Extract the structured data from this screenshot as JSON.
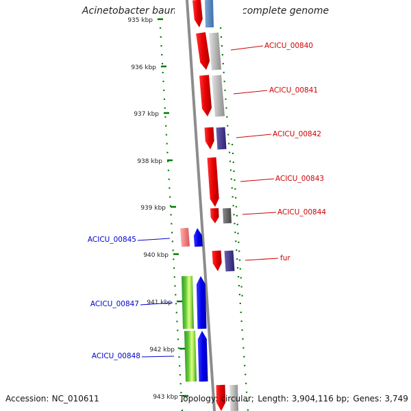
{
  "title": "Acinetobacter baumannii ACICU, complete genome",
  "accession": {
    "label": "Accession:",
    "value": "NC_010611"
  },
  "topology": {
    "topology_label": "Topology:",
    "topology_value": "circular;",
    "length_label": "Length:",
    "length_value": "3,904,116 bp;",
    "genes_label": "Genes:",
    "genes_value": "3,749"
  },
  "ticks": [
    "935 kbp",
    "936 kbp",
    "937 kbp",
    "938 kbp",
    "939 kbp",
    "940 kbp",
    "941 kbp",
    "942 kbp",
    "943 kbp"
  ],
  "labels": [
    {
      "text": "ACICU_00840",
      "strand": "forward"
    },
    {
      "text": "ACICU_00841",
      "strand": "forward"
    },
    {
      "text": "ACICU_00842",
      "strand": "forward"
    },
    {
      "text": "ACICU_00843",
      "strand": "forward"
    },
    {
      "text": "ACICU_00844",
      "strand": "forward"
    },
    {
      "text": "fur",
      "strand": "forward"
    },
    {
      "text": "ACICU_00845",
      "strand": "reverse"
    },
    {
      "text": "ACICU_00847",
      "strand": "reverse"
    },
    {
      "text": "ACICU_00848",
      "strand": "reverse"
    }
  ],
  "colors": {
    "forward_label": "#cc0000",
    "reverse_label": "#0000cc",
    "forward_cds": "#ff0000",
    "reverse_cds": "#0000ff",
    "tick": "#007700",
    "backbone": "#808080"
  }
}
